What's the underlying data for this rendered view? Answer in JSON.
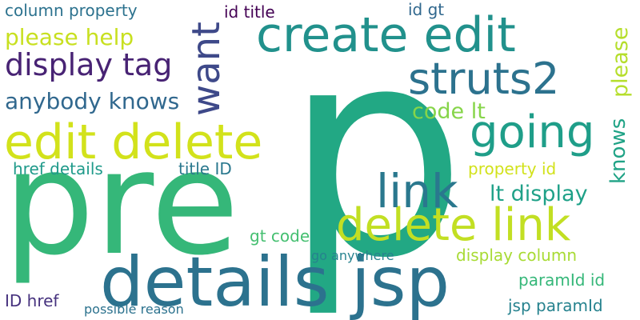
{
  "words": [
    {
      "text": "p",
      "color": "#22a884"
    },
    {
      "text": "pre",
      "color": "#35b779"
    },
    {
      "text": "details jsp",
      "color": "#2c728e"
    },
    {
      "text": "edit delete",
      "color": "#d2e21b"
    },
    {
      "text": "create edit",
      "color": "#21918c"
    },
    {
      "text": "delete link",
      "color": "#c2df23"
    },
    {
      "text": "struts2",
      "color": "#2c728e"
    },
    {
      "text": "going",
      "color": "#1f9e89"
    },
    {
      "text": "link",
      "color": "#2a788e"
    },
    {
      "text": "want",
      "color": "#3e4989"
    },
    {
      "text": "display tag",
      "color": "#482374"
    },
    {
      "text": "anybody knows",
      "color": "#31688e"
    },
    {
      "text": "please help",
      "color": "#c8e020"
    },
    {
      "text": "column property",
      "color": "#2c728e"
    },
    {
      "text": "id title",
      "color": "#440154"
    },
    {
      "text": "id gt",
      "color": "#31688e"
    },
    {
      "text": "code lt",
      "color": "#86d549"
    },
    {
      "text": "please",
      "color": "#b5de2b"
    },
    {
      "text": "knows",
      "color": "#20a386"
    },
    {
      "text": "property id",
      "color": "#d2e21b"
    },
    {
      "text": "lt display",
      "color": "#1fa188"
    },
    {
      "text": "href details",
      "color": "#1f9a8a"
    },
    {
      "text": "title ID",
      "color": "#2a788e"
    },
    {
      "text": "gt code",
      "color": "#44bf70"
    },
    {
      "text": "display column",
      "color": "#a8db34"
    },
    {
      "text": "go anywhere",
      "color": "#26828e"
    },
    {
      "text": "paramId id",
      "color": "#35b779"
    },
    {
      "text": "ID href",
      "color": "#46327e"
    },
    {
      "text": "possible reason",
      "color": "#2c728e"
    },
    {
      "text": "jsp paramId",
      "color": "#26828e"
    }
  ]
}
